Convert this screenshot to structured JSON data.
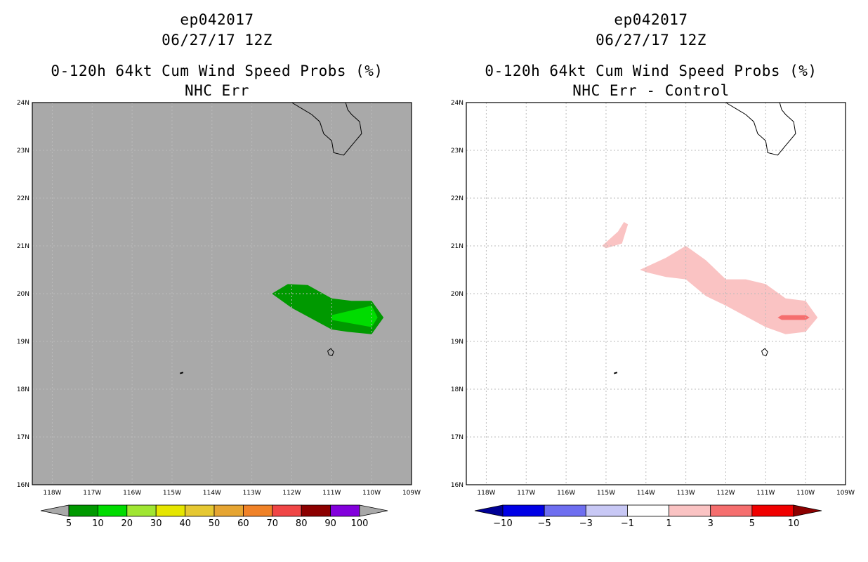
{
  "chart_data": [
    {
      "type": "contour-map",
      "title": [
        "ep042017",
        "06/27/17 12Z",
        "0-120h 64kt Cum Wind Speed Probs (%)",
        "NHC Err"
      ],
      "x_ticks": [
        "118W",
        "117W",
        "116W",
        "115W",
        "114W",
        "113W",
        "112W",
        "111W",
        "110W",
        "109W"
      ],
      "y_ticks": [
        "16N",
        "17N",
        "18N",
        "19N",
        "20N",
        "21N",
        "22N",
        "23N",
        "24N"
      ],
      "xlim_lon": [
        -118.5,
        -109
      ],
      "ylim_lat": [
        16,
        24
      ],
      "grid": true,
      "background_color": "#a9a9a9",
      "colorbar": {
        "labels": [
          "5",
          "10",
          "20",
          "30",
          "40",
          "50",
          "60",
          "70",
          "80",
          "90",
          "100"
        ],
        "colors": [
          "#009900",
          "#00dc00",
          "#a0e632",
          "#e6e600",
          "#e6c832",
          "#e6a532",
          "#f08228",
          "#f04646",
          "#8c0000",
          "#8200dc"
        ],
        "end_color": "#a9a9a9"
      },
      "contours": [
        {
          "level": "5-10",
          "color": "#009900",
          "polygon": [
            [
              -112.5,
              20.0
            ],
            [
              -112.1,
              20.2
            ],
            [
              -111.6,
              20.18
            ],
            [
              -111.0,
              19.9
            ],
            [
              -110.5,
              19.85
            ],
            [
              -110.0,
              19.85
            ],
            [
              -109.7,
              19.5
            ],
            [
              -110.0,
              19.15
            ],
            [
              -110.6,
              19.2
            ],
            [
              -111.0,
              19.25
            ],
            [
              -112.0,
              19.7
            ]
          ]
        },
        {
          "level": "10-20",
          "color": "#00dc00",
          "polygon": [
            [
              -111.0,
              19.55
            ],
            [
              -110.0,
              19.75
            ],
            [
              -109.85,
              19.5
            ],
            [
              -110.0,
              19.3
            ],
            [
              -111.0,
              19.45
            ]
          ]
        }
      ],
      "land_features": [
        "Baja California coastline (upper right)",
        "Isla Socorro",
        "Isla San Benedicto"
      ]
    },
    {
      "type": "contour-map",
      "title": [
        "ep042017",
        "06/27/17 12Z",
        "0-120h 64kt Cum Wind Speed Probs (%)",
        "NHC Err - Control"
      ],
      "x_ticks": [
        "118W",
        "117W",
        "116W",
        "115W",
        "114W",
        "113W",
        "112W",
        "111W",
        "110W",
        "109W"
      ],
      "y_ticks": [
        "16N",
        "17N",
        "18N",
        "19N",
        "20N",
        "21N",
        "22N",
        "23N",
        "24N"
      ],
      "xlim_lon": [
        -118.5,
        -109
      ],
      "ylim_lat": [
        16,
        24
      ],
      "grid": true,
      "background_color": "#ffffff",
      "colorbar": {
        "labels": [
          "-10",
          "-5",
          "-3",
          "-1",
          "1",
          "3",
          "5",
          "10"
        ],
        "colors": [
          "#0000e6",
          "#6e6ef0",
          "#c8c8f5",
          "#ffffff",
          "#fac3c3",
          "#f56e6e",
          "#f00000"
        ],
        "start_color": "#000096",
        "end_color": "#8c0000"
      },
      "contours": [
        {
          "level": "1-3",
          "color": "#fac3c3",
          "polygon": [
            [
              -115.1,
              21.0
            ],
            [
              -114.7,
              21.3
            ],
            [
              -114.55,
              21.5
            ],
            [
              -114.45,
              21.45
            ],
            [
              -114.6,
              21.05
            ],
            [
              -115.0,
              20.95
            ]
          ]
        },
        {
          "level": "1-3",
          "color": "#fac3c3",
          "polygon": [
            [
              -114.15,
              20.5
            ],
            [
              -113.5,
              20.75
            ],
            [
              -113.0,
              21.0
            ],
            [
              -112.5,
              20.7
            ],
            [
              -112.0,
              20.3
            ],
            [
              -111.5,
              20.3
            ],
            [
              -111.0,
              20.2
            ],
            [
              -110.5,
              19.9
            ],
            [
              -110.0,
              19.85
            ],
            [
              -109.7,
              19.5
            ],
            [
              -110.0,
              19.2
            ],
            [
              -110.5,
              19.15
            ],
            [
              -111.0,
              19.3
            ],
            [
              -112.0,
              19.75
            ],
            [
              -112.5,
              19.95
            ],
            [
              -113.0,
              20.3
            ],
            [
              -113.5,
              20.35
            ],
            [
              -114.0,
              20.45
            ]
          ]
        },
        {
          "level": "3-5",
          "color": "#f56e6e",
          "polygon": [
            [
              -110.7,
              19.5
            ],
            [
              -110.6,
              19.55
            ],
            [
              -110.0,
              19.55
            ],
            [
              -109.9,
              19.5
            ],
            [
              -110.0,
              19.45
            ],
            [
              -110.6,
              19.45
            ]
          ]
        }
      ],
      "land_features": [
        "Baja California coastline (upper right)",
        "Isla Socorro",
        "Isla San Benedicto"
      ]
    }
  ]
}
